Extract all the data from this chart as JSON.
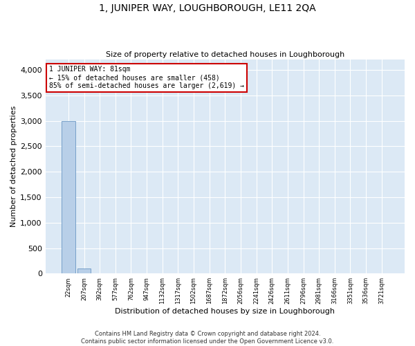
{
  "title": "1, JUNIPER WAY, LOUGHBOROUGH, LE11 2QA",
  "subtitle": "Size of property relative to detached houses in Loughborough",
  "xlabel": "Distribution of detached houses by size in Loughborough",
  "ylabel": "Number of detached properties",
  "footer_line1": "Contains HM Land Registry data © Crown copyright and database right 2024.",
  "footer_line2": "Contains public sector information licensed under the Open Government Licence v3.0.",
  "categories": [
    "22sqm",
    "207sqm",
    "392sqm",
    "577sqm",
    "762sqm",
    "947sqm",
    "1132sqm",
    "1317sqm",
    "1502sqm",
    "1687sqm",
    "1872sqm",
    "2056sqm",
    "2241sqm",
    "2426sqm",
    "2611sqm",
    "2796sqm",
    "2981sqm",
    "3166sqm",
    "3351sqm",
    "3536sqm",
    "3721sqm"
  ],
  "values": [
    3000,
    100,
    0,
    0,
    0,
    0,
    0,
    0,
    0,
    0,
    0,
    0,
    0,
    0,
    0,
    0,
    0,
    0,
    0,
    0,
    0
  ],
  "bar_color": "#b8cfe8",
  "bar_edge_color": "#5588bb",
  "background_color": "#dce9f5",
  "ylim": [
    0,
    4200
  ],
  "yticks": [
    0,
    500,
    1000,
    1500,
    2000,
    2500,
    3000,
    3500,
    4000
  ],
  "annotation_text": "1 JUNIPER WAY: 81sqm\n← 15% of detached houses are smaller (458)\n85% of semi-detached houses are larger (2,619) →",
  "annotation_box_color": "#ffffff",
  "annotation_border_color": "#cc0000",
  "title_fontsize": 10,
  "subtitle_fontsize": 8,
  "xlabel_fontsize": 8,
  "ylabel_fontsize": 8,
  "xtick_fontsize": 6,
  "ytick_fontsize": 8,
  "annotation_fontsize": 7,
  "footer_fontsize": 6
}
